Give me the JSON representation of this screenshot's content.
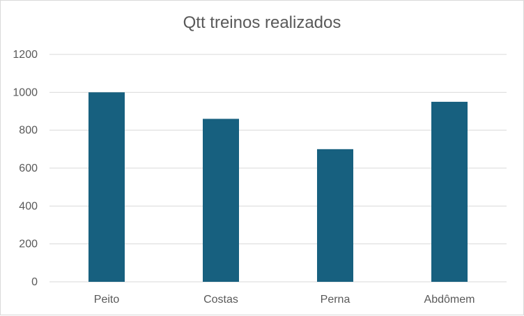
{
  "chart_data": {
    "type": "bar",
    "title": "Qtt treinos realizados",
    "categories": [
      "Peito",
      "Costas",
      "Perna",
      "Abdômem"
    ],
    "values": [
      1000,
      860,
      700,
      950
    ],
    "ylim": [
      0,
      1200
    ],
    "yticks": [
      "0",
      "200",
      "400",
      "600",
      "800",
      "1000",
      "1200"
    ],
    "grid": true,
    "bar_color": "#17607f",
    "grid_color": "#d9d9d9",
    "legend": "none"
  }
}
